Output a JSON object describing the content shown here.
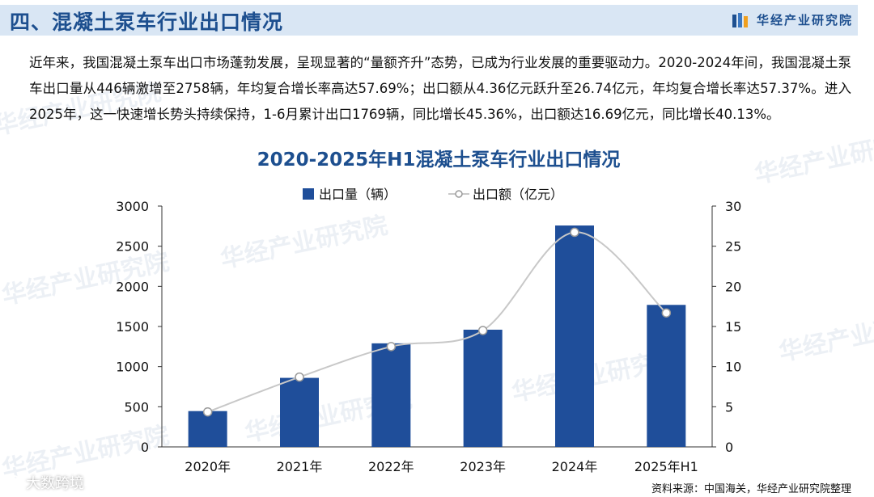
{
  "header": {
    "title": "四、混凝土泵车行业出口情况",
    "brand": "华经产业研究院"
  },
  "paragraph": "近年来，我国混凝土泵车出口市场蓬勃发展，呈现显著的“量额齐升”态势，已成为行业发展的重要驱动力。2020-2024年间，我国混凝土泵车出口量从446辆激增至2758辆，年均复合增长率高达57.69%；出口额从4.36亿元跃升至26.74亿元，年均复合增长率达57.37%。进入2025年，这一快速增长势头持续保持，1-6月累计出口1769辆，同比增长45.36%，出口额达16.69亿元，同比增长40.13%。",
  "watermark": "华经产业研究院",
  "footer": {
    "platform": "大数跨境",
    "source": "资料来源：中国海关，华经产业研究院整理"
  },
  "colors": {
    "bar": "#1f4e9a",
    "line": "#c8c8c8",
    "title": "#1d4f8f",
    "header_bg": "#d9e6f4"
  },
  "chart_data": {
    "type": "bar",
    "title": "2020-2025年H1混凝土泵车行业出口情况",
    "categories": [
      "2020年",
      "2021年",
      "2022年",
      "2023年",
      "2024年",
      "2025年H1"
    ],
    "series": [
      {
        "name": "出口量（辆）",
        "type": "bar",
        "axis": "left",
        "values": [
          446,
          860,
          1290,
          1460,
          2758,
          1769
        ]
      },
      {
        "name": "出口额（亿元）",
        "type": "line",
        "axis": "right",
        "values": [
          4.36,
          8.7,
          12.5,
          14.5,
          26.74,
          16.69
        ]
      }
    ],
    "ylim_left": [
      0,
      3000
    ],
    "ylim_right": [
      0,
      30
    ],
    "yticks_left": [
      "0",
      "500",
      "1000",
      "1500",
      "2000",
      "2500",
      "3000"
    ],
    "yticks_right": [
      "0",
      "5",
      "10",
      "15",
      "20",
      "25",
      "30"
    ],
    "legend_position": "top-center",
    "grid": false
  }
}
